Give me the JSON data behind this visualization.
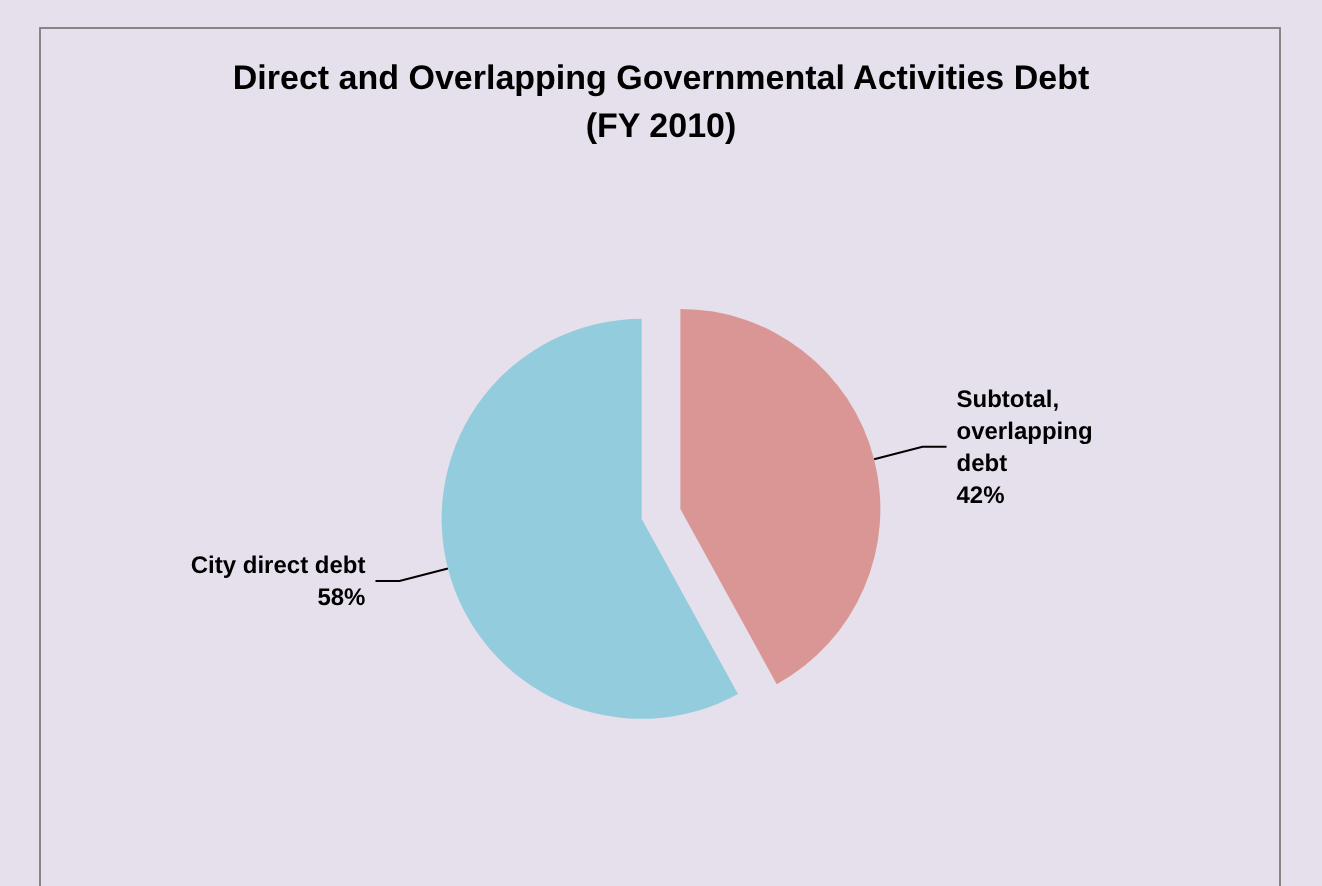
{
  "chart_data": {
    "type": "pie",
    "title": "Direct and Overlapping Governmental Activities Debt\n(FY 2010)",
    "categories": [
      "Subtotal, overlapping debt",
      "City direct debt"
    ],
    "values": [
      42,
      58
    ],
    "colors": [
      "#d99694",
      "#93cddd"
    ],
    "value_labels": [
      "42%",
      "58%"
    ],
    "legend": false
  }
}
